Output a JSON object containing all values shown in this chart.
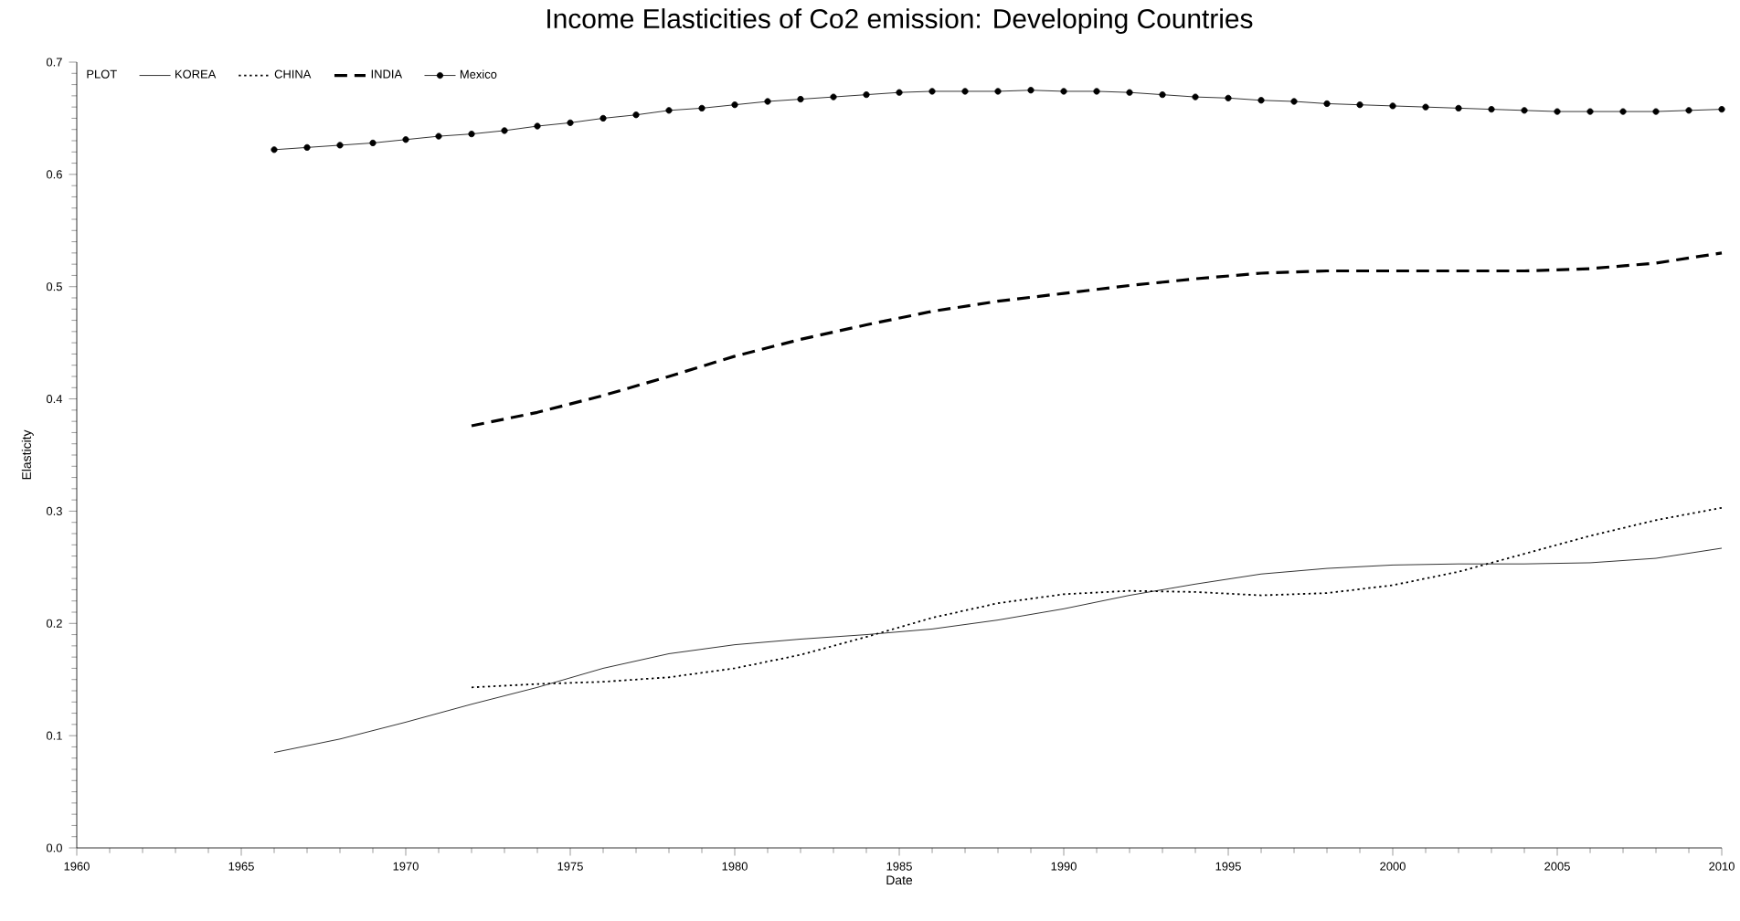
{
  "chart_data": {
    "type": "line",
    "title": "Income Elasticities of Co2 emission: Developing Countries",
    "xlabel": "Date",
    "ylabel": "Elasticity",
    "legend_title": "PLOT",
    "legend": "top left",
    "grid": false,
    "xlim": [
      1960,
      2010
    ],
    "xticks": [
      1960,
      1965,
      1970,
      1975,
      1980,
      1985,
      1990,
      1995,
      2000,
      2005,
      2010
    ],
    "ylim": [
      0,
      0.7
    ],
    "yticks": [
      {
        "value": 0,
        "label": "0.0"
      },
      0.1,
      0.2,
      0.3,
      0.4,
      0.5,
      0.6,
      0.7
    ],
    "series": [
      {
        "name": "KOREA",
        "color": "#000000",
        "line_style": "solid",
        "marker": "none",
        "x": [
          1966,
          1968,
          1970,
          1972,
          1974,
          1976,
          1978,
          1980,
          1982,
          1984,
          1986,
          1988,
          1990,
          1992,
          1994,
          1996,
          1998,
          2000,
          2002,
          2004,
          2006,
          2008,
          2010
        ],
        "values": [
          0.085,
          0.097,
          0.112,
          0.128,
          0.143,
          0.16,
          0.173,
          0.181,
          0.186,
          0.19,
          0.195,
          0.203,
          0.213,
          0.225,
          0.235,
          0.244,
          0.249,
          0.252,
          0.253,
          0.253,
          0.254,
          0.258,
          0.267
        ]
      },
      {
        "name": "CHINA",
        "color": "#000000",
        "line_style": "dotted",
        "marker": "none",
        "x": [
          1972,
          1974,
          1976,
          1978,
          1980,
          1982,
          1984,
          1986,
          1988,
          1990,
          1992,
          1994,
          1996,
          1998,
          2000,
          2002,
          2004,
          2006,
          2008,
          2010
        ],
        "values": [
          0.143,
          0.146,
          0.148,
          0.152,
          0.16,
          0.172,
          0.188,
          0.205,
          0.218,
          0.226,
          0.229,
          0.228,
          0.225,
          0.227,
          0.234,
          0.246,
          0.262,
          0.278,
          0.292,
          0.303
        ]
      },
      {
        "name": "INDIA",
        "color": "#000000",
        "line_style": "dashed",
        "marker": "none",
        "x": [
          1972,
          1974,
          1976,
          1978,
          1980,
          1982,
          1984,
          1986,
          1988,
          1990,
          1992,
          1994,
          1996,
          1998,
          2000,
          2002,
          2004,
          2006,
          2008,
          2010
        ],
        "values": [
          0.376,
          0.388,
          0.403,
          0.42,
          0.438,
          0.453,
          0.466,
          0.478,
          0.487,
          0.494,
          0.501,
          0.507,
          0.512,
          0.514,
          0.514,
          0.514,
          0.514,
          0.516,
          0.521,
          0.53
        ]
      },
      {
        "name": "Mexico",
        "color": "#000000",
        "line_style": "solid",
        "marker": "circle",
        "x": [
          1966,
          1967,
          1968,
          1969,
          1970,
          1971,
          1972,
          1973,
          1974,
          1975,
          1976,
          1977,
          1978,
          1979,
          1980,
          1981,
          1982,
          1983,
          1984,
          1985,
          1986,
          1987,
          1988,
          1989,
          1990,
          1991,
          1992,
          1993,
          1994,
          1995,
          1996,
          1997,
          1998,
          1999,
          2000,
          2001,
          2002,
          2003,
          2004,
          2005,
          2006,
          2007,
          2008,
          2009,
          2010
        ],
        "values": [
          0.622,
          0.624,
          0.626,
          0.628,
          0.631,
          0.634,
          0.636,
          0.639,
          0.643,
          0.646,
          0.65,
          0.653,
          0.657,
          0.659,
          0.662,
          0.665,
          0.667,
          0.669,
          0.671,
          0.673,
          0.674,
          0.674,
          0.674,
          0.675,
          0.674,
          0.674,
          0.673,
          0.671,
          0.669,
          0.668,
          0.666,
          0.665,
          0.663,
          0.662,
          0.661,
          0.66,
          0.659,
          0.658,
          0.657,
          0.656,
          0.656,
          0.656,
          0.656,
          0.657,
          0.658
        ]
      }
    ]
  }
}
